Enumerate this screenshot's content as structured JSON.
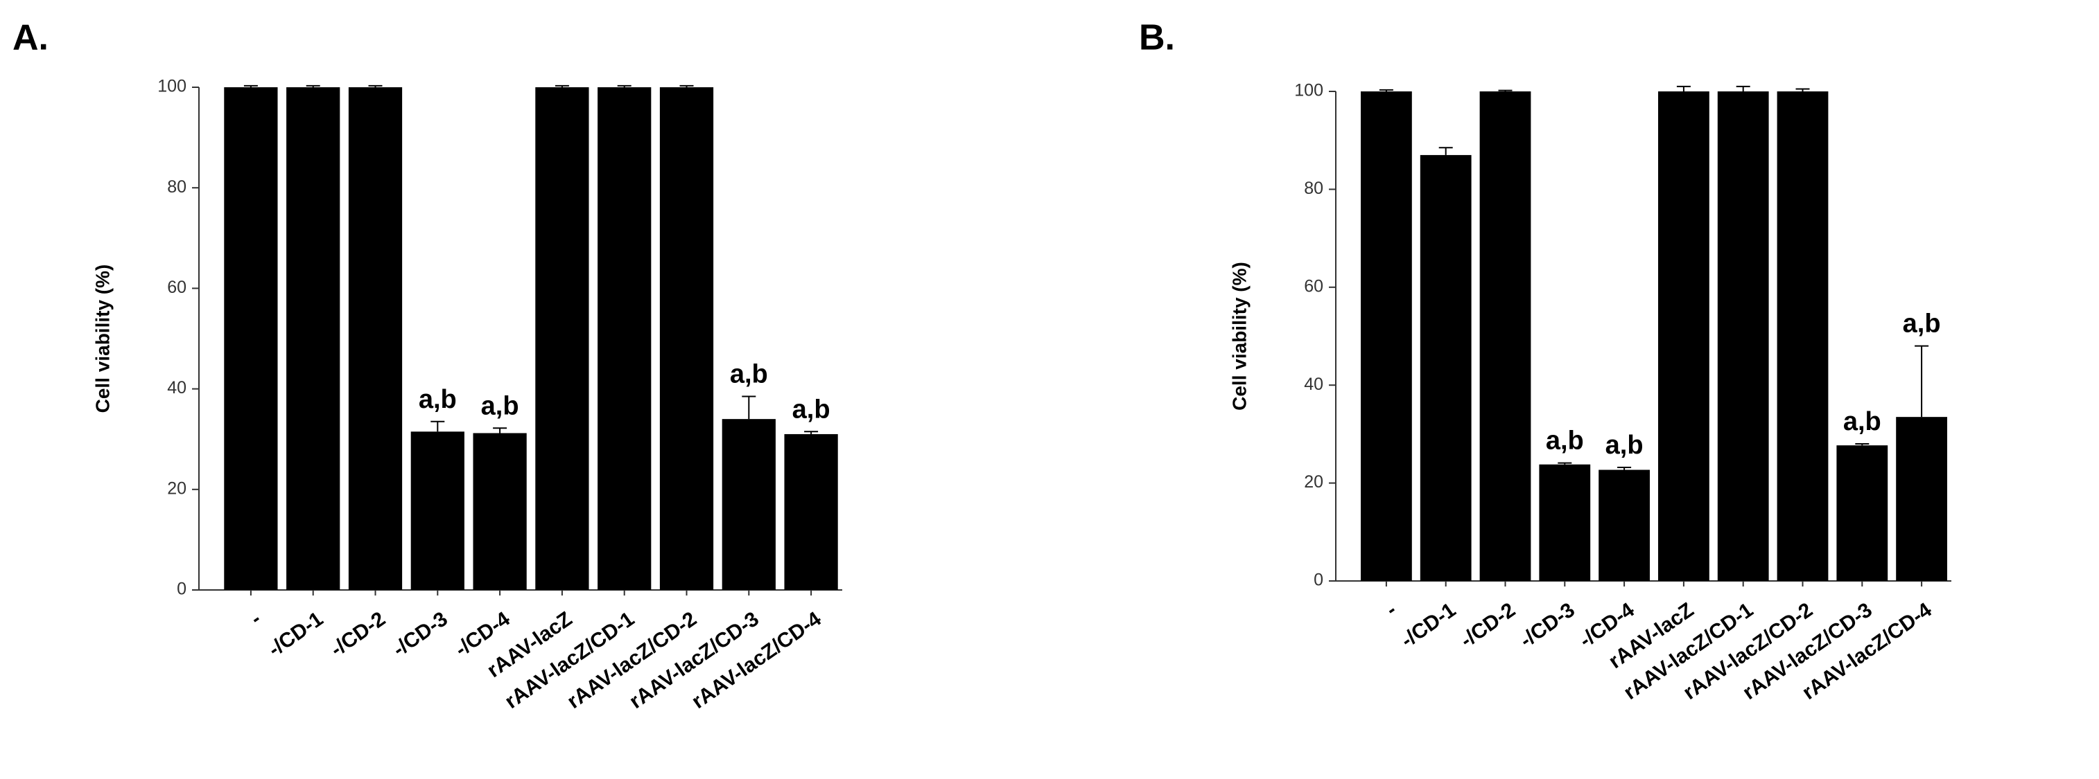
{
  "chart_data": [
    {
      "type": "bar",
      "panel_label": "A.",
      "ylabel": "Cell viability (%)",
      "categories": [
        "-",
        "-/CD-1",
        "-/CD-2",
        "-/CD-3",
        "-/CD-4",
        "rAAV-lacZ",
        "rAAV-lacZ/CD-1",
        "rAAV-lacZ/CD-2",
        "rAAV-lacZ/CD-3",
        "rAAV-lacZ/CD-4"
      ],
      "values": [
        100,
        100,
        100,
        31.5,
        31.2,
        100,
        100,
        100,
        34,
        31
      ],
      "errors": [
        0.3,
        0.3,
        0.3,
        2,
        1,
        0.3,
        0.3,
        0.3,
        4.5,
        0.5
      ],
      "bar_labels": [
        null,
        null,
        null,
        "a,b",
        "a,b",
        null,
        null,
        null,
        "a,b",
        "a,b"
      ],
      "color": "#000000",
      "ylim": [
        0,
        100
      ],
      "yticks": [
        0,
        20,
        40,
        60,
        80,
        100
      ],
      "grid": false
    },
    {
      "type": "bar",
      "panel_label": "B.",
      "ylabel": "Cell viability (%)",
      "categories": [
        "-",
        "-/CD-1",
        "-/CD-2",
        "-/CD-3",
        "-/CD-4",
        "rAAV-lacZ",
        "rAAV-lacZ/CD-1",
        "rAAV-lacZ/CD-2",
        "rAAV-lacZ/CD-3",
        "rAAV-lacZ/CD-4"
      ],
      "values": [
        100,
        87,
        100,
        23.8,
        22.7,
        100,
        100,
        100,
        27.7,
        33.5
      ],
      "errors": [
        0.3,
        1.5,
        0.2,
        0.3,
        0.5,
        1,
        1,
        0.5,
        0.3,
        14.5
      ],
      "bar_labels": [
        null,
        null,
        null,
        "a,b",
        "a,b",
        null,
        null,
        null,
        "a,b",
        "a,b"
      ],
      "color": "#000000",
      "ylim": [
        0,
        100
      ],
      "yticks": [
        0,
        20,
        40,
        60,
        80,
        100
      ],
      "grid": false
    }
  ]
}
